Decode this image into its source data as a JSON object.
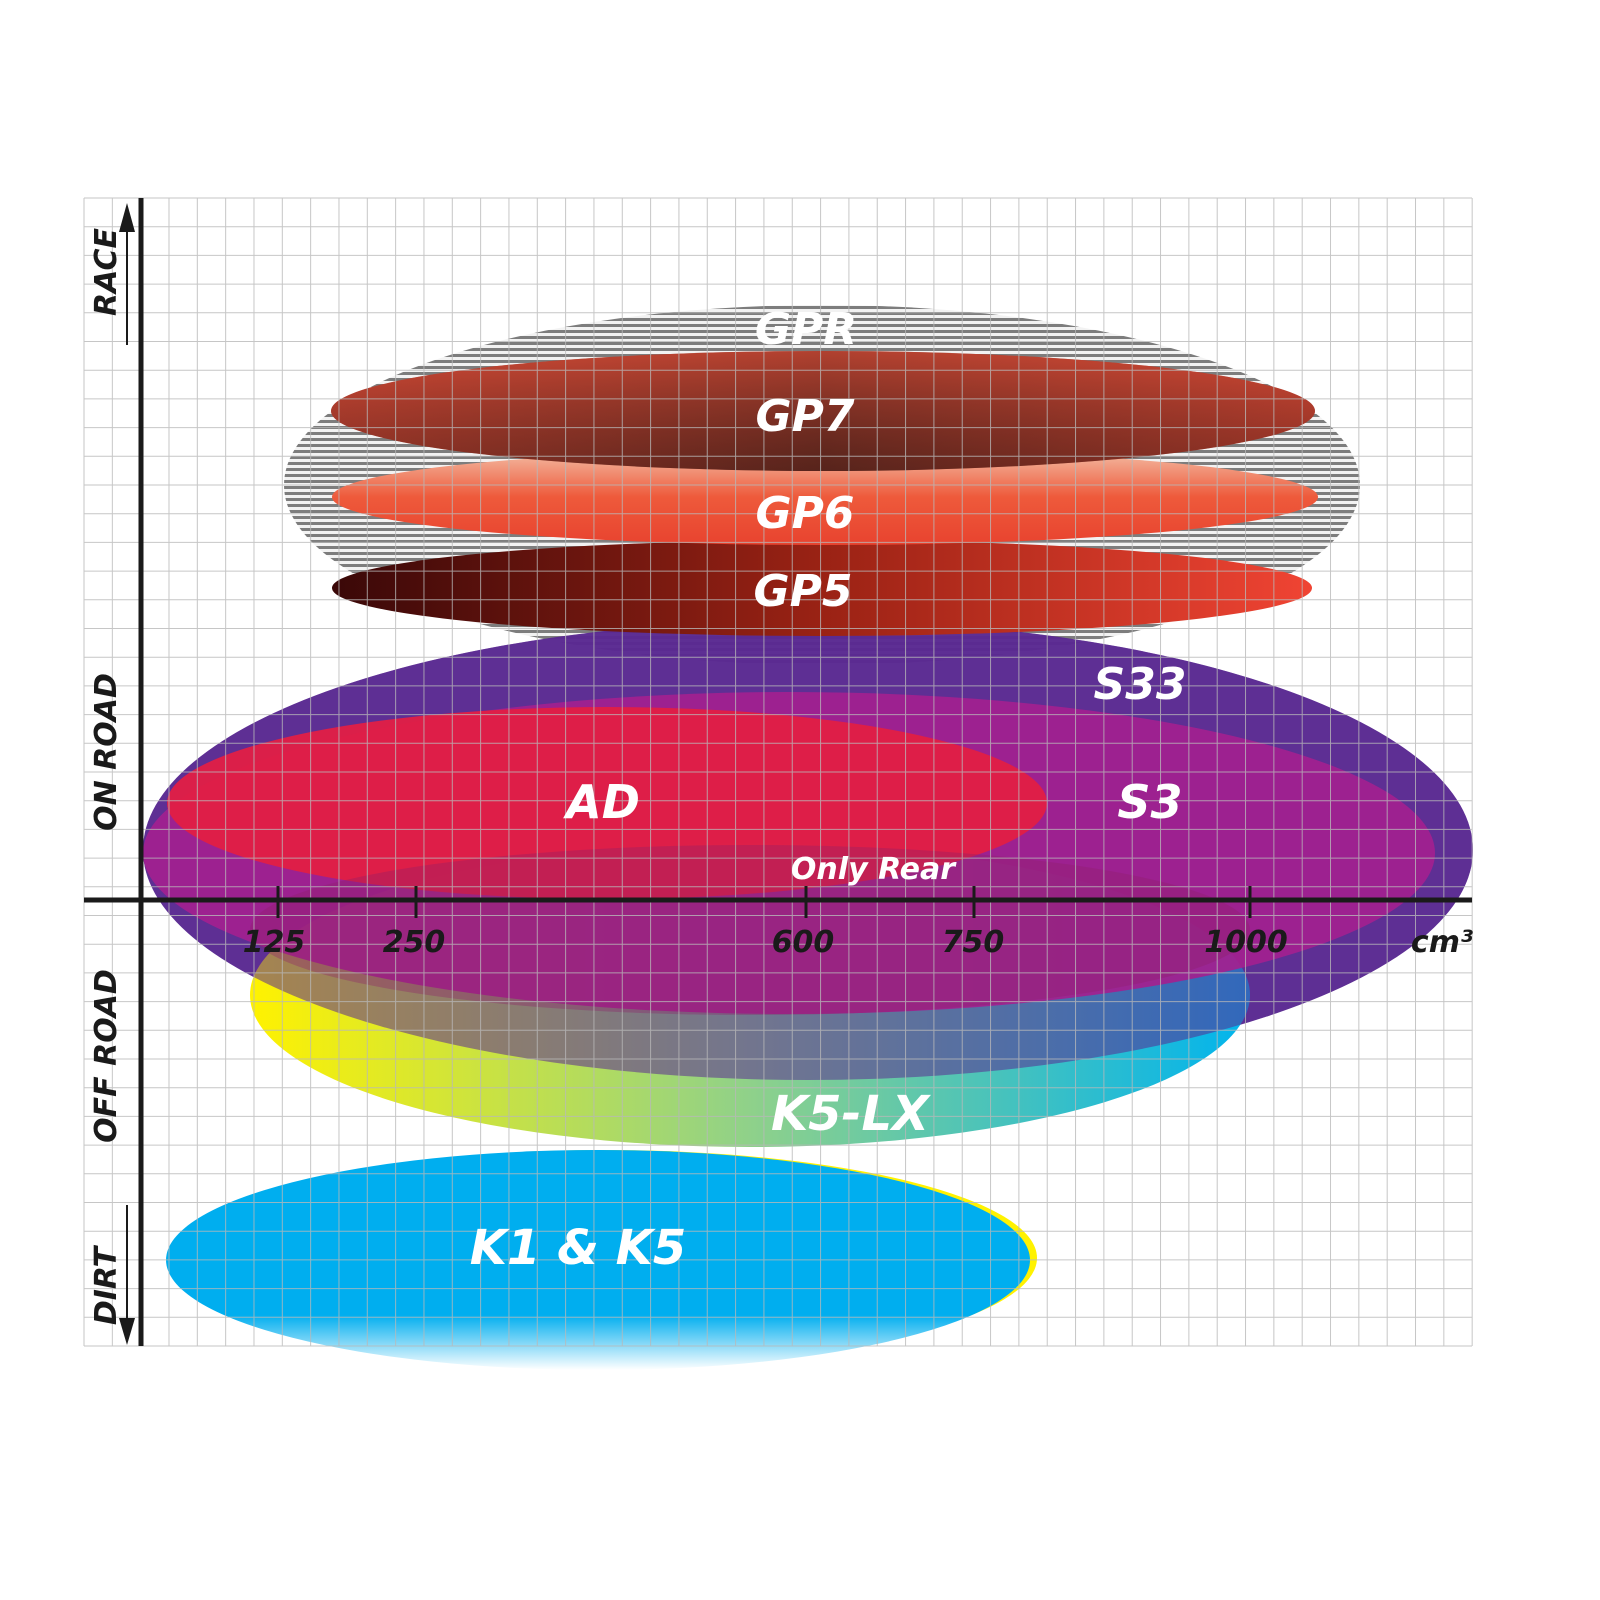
{
  "axis": {
    "vertical_labels": [
      "RACE",
      "ON ROAD",
      "OFF ROAD",
      "DIRT"
    ],
    "ticks": [
      "125",
      "250",
      "600",
      "750",
      "1000"
    ],
    "unit": "cm³"
  },
  "products": {
    "gpr": "GPR",
    "gp7": "GP7",
    "gp6": "GP6",
    "gp5": "GP5",
    "s33": "S33",
    "s3": "S3",
    "ad": "AD",
    "only_rear": "Only Rear",
    "k5lx": "K5-LX",
    "k1k5": "K1 & K5"
  },
  "colors": {
    "gpr": "#8a8a8a",
    "s33": "#5b2a91",
    "s3": "#a3218f",
    "ad": "#e11f45",
    "k1k5": "#00aeef"
  }
}
